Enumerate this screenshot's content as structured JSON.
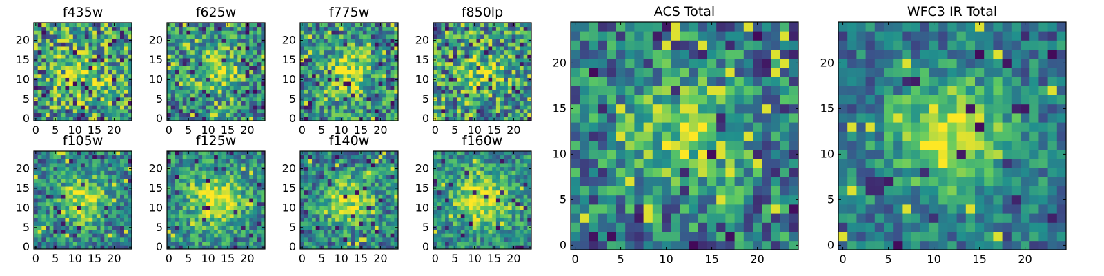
{
  "colormap": [
    "#440154",
    "#3b528b",
    "#21908d",
    "#5dc963",
    "#fde725"
  ],
  "chart_data": [
    {
      "type": "heatmap",
      "title": "f435w",
      "size": 25,
      "seed": 11,
      "blob": 0.2,
      "noise": 0.8,
      "extremes": 0.06,
      "bias": 0.55,
      "xticks": [
        "0",
        "5",
        "10",
        "15",
        "20"
      ],
      "yticks": [
        "0",
        "5",
        "10",
        "15",
        "20"
      ]
    },
    {
      "type": "heatmap",
      "title": "f625w",
      "size": 25,
      "seed": 23,
      "blob": 0.35,
      "noise": 0.65,
      "extremes": 0.07,
      "bias": 0.5,
      "xticks": [
        "0",
        "5",
        "10",
        "15",
        "20"
      ],
      "yticks": [
        "0",
        "5",
        "10",
        "15",
        "20"
      ]
    },
    {
      "type": "heatmap",
      "title": "f775w",
      "size": 25,
      "seed": 37,
      "blob": 0.35,
      "noise": 0.65,
      "extremes": 0.06,
      "bias": 0.5,
      "xticks": [
        "0",
        "5",
        "10",
        "15",
        "20"
      ],
      "yticks": [
        "0",
        "5",
        "10",
        "15",
        "20"
      ]
    },
    {
      "type": "heatmap",
      "title": "f850lp",
      "size": 25,
      "seed": 41,
      "blob": 0.25,
      "noise": 0.75,
      "extremes": 0.07,
      "bias": 0.52,
      "xticks": [
        "0",
        "5",
        "10",
        "15",
        "20"
      ],
      "yticks": [
        "0",
        "5",
        "10",
        "15",
        "20"
      ]
    },
    {
      "type": "heatmap",
      "title": "f105w",
      "size": 25,
      "seed": 53,
      "blob": 0.45,
      "noise": 0.55,
      "extremes": 0.05,
      "bias": 0.45,
      "xticks": [
        "0",
        "5",
        "10",
        "15",
        "20"
      ],
      "yticks": [
        "0",
        "5",
        "10",
        "15",
        "20"
      ]
    },
    {
      "type": "heatmap",
      "title": "f125w",
      "size": 25,
      "seed": 67,
      "blob": 0.5,
      "noise": 0.5,
      "extremes": 0.04,
      "bias": 0.5,
      "xticks": [
        "0",
        "5",
        "10",
        "15",
        "20"
      ],
      "yticks": [
        "0",
        "5",
        "10",
        "15",
        "20"
      ]
    },
    {
      "type": "heatmap",
      "title": "f140w",
      "size": 25,
      "seed": 71,
      "blob": 0.45,
      "noise": 0.55,
      "extremes": 0.05,
      "bias": 0.45,
      "xticks": [
        "0",
        "5",
        "10",
        "15",
        "20"
      ],
      "yticks": [
        "0",
        "5",
        "10",
        "15",
        "20"
      ]
    },
    {
      "type": "heatmap",
      "title": "f160w",
      "size": 25,
      "seed": 83,
      "blob": 0.5,
      "noise": 0.5,
      "extremes": 0.05,
      "bias": 0.5,
      "xticks": [
        "0",
        "5",
        "10",
        "15",
        "20"
      ],
      "yticks": [
        "0",
        "5",
        "10",
        "15",
        "20"
      ]
    },
    {
      "type": "heatmap",
      "title": "ACS Total",
      "size": 25,
      "seed": 97,
      "blob": 0.4,
      "noise": 0.6,
      "extremes": 0.05,
      "bias": 0.42,
      "xticks": [
        "0",
        "5",
        "10",
        "15",
        "20"
      ],
      "yticks": [
        "0",
        "5",
        "10",
        "15",
        "20"
      ]
    },
    {
      "type": "heatmap",
      "title": "WFC3 IR Total",
      "size": 25,
      "seed": 101,
      "blob": 0.55,
      "noise": 0.45,
      "extremes": 0.04,
      "bias": 0.4,
      "xticks": [
        "0",
        "5",
        "10",
        "15",
        "20"
      ],
      "yticks": [
        "0",
        "5",
        "10",
        "15",
        "20"
      ]
    }
  ]
}
